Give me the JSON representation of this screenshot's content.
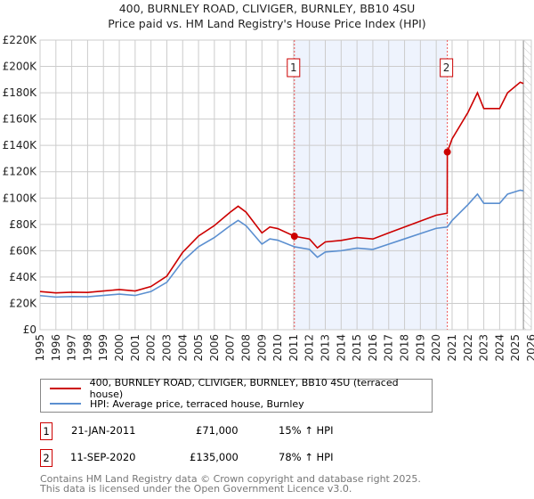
{
  "chart_data": {
    "type": "line",
    "title": "400, BURNLEY ROAD, CLIVIGER, BURNLEY, BB10 4SU",
    "subtitle": "Price paid vs. HM Land Registry's House Price Index (HPI)",
    "xlim": [
      1995,
      2026
    ],
    "ylim": [
      0,
      220000
    ],
    "y_ticks": [
      0,
      20000,
      40000,
      60000,
      80000,
      100000,
      120000,
      140000,
      160000,
      180000,
      200000,
      220000
    ],
    "y_tick_labels": [
      "£0",
      "£20K",
      "£40K",
      "£60K",
      "£80K",
      "£100K",
      "£120K",
      "£140K",
      "£160K",
      "£180K",
      "£200K",
      "£220K"
    ],
    "x_ticks": [
      "1995",
      "1996",
      "1997",
      "1998",
      "1999",
      "2000",
      "2001",
      "2002",
      "2003",
      "2004",
      "2005",
      "2006",
      "2007",
      "2008",
      "2009",
      "2010",
      "2011",
      "2012",
      "2013",
      "2014",
      "2015",
      "2016",
      "2017",
      "2018",
      "2019",
      "2020",
      "2021",
      "2022",
      "2023",
      "2024",
      "2025",
      "2026"
    ],
    "grid": true,
    "series": [
      {
        "name": "400, BURNLEY ROAD, CLIVIGER, BURNLEY, BB10 4SU (terraced house)",
        "color": "#cc0000",
        "x": [
          1995,
          1996,
          1997,
          1998,
          1999,
          2000,
          2001,
          2002,
          2003,
          2004,
          2005,
          2006,
          2007,
          2007.5,
          2008,
          2009,
          2009.5,
          2010,
          2011.05,
          2012,
          2012.5,
          2013,
          2014,
          2015,
          2016,
          2017,
          2018,
          2019,
          2020,
          2020.69,
          2020.7,
          2021,
          2022,
          2022.6,
          2023,
          2024,
          2024.5,
          2025.3,
          2025.5
        ],
        "values": [
          29000,
          28000,
          28500,
          28300,
          29400,
          30500,
          29400,
          32800,
          40700,
          58800,
          71200,
          79100,
          89300,
          93800,
          89300,
          73500,
          78000,
          76800,
          71000,
          68900,
          62200,
          66700,
          67800,
          70000,
          68900,
          73500,
          78000,
          82500,
          87000,
          88500,
          135000,
          145000,
          165000,
          180000,
          168000,
          168000,
          180000,
          188000,
          187000
        ]
      },
      {
        "name": "HPI: Average price, terraced house, Burnley",
        "color": "#5b8fd0",
        "x": [
          1995,
          1996,
          1997,
          1998,
          1999,
          2000,
          2001,
          2002,
          2003,
          2004,
          2005,
          2006,
          2007,
          2007.5,
          2008,
          2009,
          2009.5,
          2010,
          2011.05,
          2012,
          2012.5,
          2013,
          2014,
          2015,
          2016,
          2017,
          2018,
          2019,
          2020,
          2020.7,
          2021,
          2022,
          2022.6,
          2023,
          2024,
          2024.5,
          2025.3,
          2025.5
        ],
        "values": [
          25900,
          24800,
          25200,
          25000,
          26000,
          27000,
          26000,
          29000,
          36000,
          52000,
          63000,
          70000,
          79000,
          83000,
          79000,
          65000,
          69000,
          68000,
          63000,
          61000,
          55000,
          59000,
          60000,
          62000,
          61000,
          65000,
          69000,
          73000,
          77000,
          78000,
          83000,
          95000,
          103000,
          96000,
          96000,
          103000,
          106000,
          105500
        ]
      }
    ],
    "sales": [
      {
        "label": "1",
        "x": 2011.05,
        "value": 71000
      },
      {
        "label": "2",
        "x": 2020.7,
        "value": 135000
      }
    ],
    "legend_placement": "bottom"
  },
  "table": [
    {
      "num": "1",
      "date": "21-JAN-2011",
      "price": "£71,000",
      "hpi": "15% ↑ HPI"
    },
    {
      "num": "2",
      "date": "11-SEP-2020",
      "price": "£135,000",
      "hpi": "78% ↑ HPI"
    }
  ],
  "footer": [
    "Contains HM Land Registry data © Crown copyright and database right 2025.",
    "This data is licensed under the Open Government Licence v3.0."
  ]
}
